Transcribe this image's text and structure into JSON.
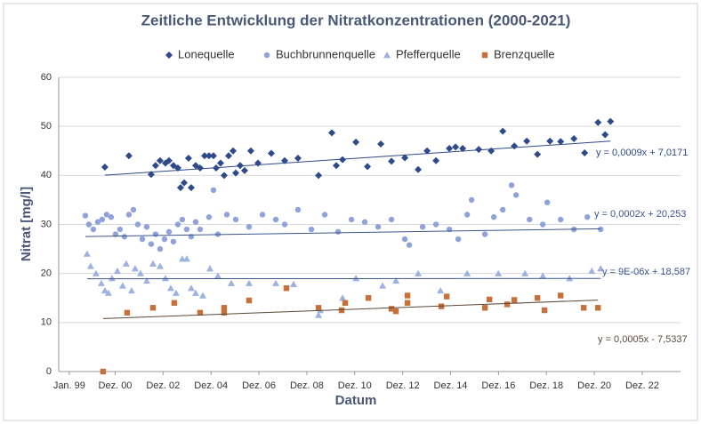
{
  "chart_data": {
    "type": "scatter",
    "title": "Zeitliche Entwicklung der Nitratkonzentrationen (2000-2021)",
    "x_label": "Datum",
    "y_label": "Nitrat [mg/l]",
    "xlim": [
      36000,
      45480
    ],
    "ylim": [
      0,
      60
    ],
    "yticks": [
      0,
      10,
      20,
      30,
      40,
      50,
      60
    ],
    "xticks": [
      {
        "value": 36161,
        "label": "Jan. 99"
      },
      {
        "value": 36861,
        "label": "Dez. 00"
      },
      {
        "value": 37591,
        "label": "Dez. 02"
      },
      {
        "value": 38322,
        "label": "Dez. 04"
      },
      {
        "value": 39052,
        "label": "Dez. 06"
      },
      {
        "value": 39783,
        "label": "Dez. 08"
      },
      {
        "value": 40513,
        "label": "Dez. 10"
      },
      {
        "value": 41244,
        "label": "Dez. 12"
      },
      {
        "value": 41974,
        "label": "Dez. 14"
      },
      {
        "value": 42705,
        "label": "Dez. 16"
      },
      {
        "value": 43435,
        "label": "Dez. 18"
      },
      {
        "value": 44166,
        "label": "Dez. 20"
      },
      {
        "value": 44896,
        "label": "Dez. 22"
      }
    ],
    "grid": true,
    "legend": "top",
    "series": [
      {
        "name": "Lonequelle",
        "color": "#2e4a8a",
        "marker": "diamond",
        "x": [
          36704,
          37070,
          37409,
          37477,
          37545,
          37627,
          37681,
          37749,
          37817,
          37857,
          37912,
          37979,
          38020,
          38088,
          38156,
          38224,
          38291,
          38359,
          38400,
          38468,
          38522,
          38590,
          38658,
          38699,
          38766,
          38834,
          38929,
          39038,
          39241,
          39445,
          39648,
          39961,
          40164,
          40232,
          40327,
          40531,
          40707,
          40911,
          41073,
          41277,
          41480,
          41616,
          41752,
          41955,
          42050,
          42159,
          42403,
          42593,
          42770,
          42946,
          43136,
          43299,
          43489,
          43652,
          43855,
          44018,
          44222,
          44330,
          44412
        ],
        "values": [
          41.7,
          44,
          40.2,
          42,
          43,
          42.5,
          43,
          42,
          41.5,
          37.5,
          38.5,
          43.5,
          37.5,
          42,
          41.5,
          44,
          44,
          44,
          41.5,
          42.5,
          40,
          44,
          45,
          40.5,
          42,
          41,
          45,
          42.5,
          44.5,
          43,
          43.5,
          40,
          48.7,
          42,
          43.2,
          46.8,
          41.8,
          46.4,
          42.9,
          43.6,
          41.2,
          45,
          43,
          45.5,
          45.8,
          45.5,
          45.3,
          45,
          49,
          46,
          47,
          44.3,
          47,
          46.9,
          47.5,
          44.6,
          50.8,
          48.3,
          51
        ]
      },
      {
        "name": "Buchbrunnenquelle",
        "color": "#8fa2d9",
        "marker": "circle",
        "x": [
          36405,
          36460,
          36527,
          36595,
          36663,
          36731,
          36799,
          36867,
          36934,
          37002,
          37070,
          37138,
          37206,
          37274,
          37342,
          37409,
          37477,
          37545,
          37613,
          37681,
          37749,
          37817,
          37884,
          37952,
          38020,
          38088,
          38156,
          38291,
          38359,
          38427,
          38563,
          38699,
          38902,
          39106,
          39309,
          39445,
          39648,
          39852,
          40056,
          40259,
          40463,
          40666,
          40870,
          41073,
          41277,
          41345,
          41548,
          41752,
          41955,
          42091,
          42227,
          42295,
          42498,
          42634,
          42770,
          42905,
          42973,
          43177,
          43380,
          43448,
          43652,
          43855,
          44059,
          44262
        ],
        "values": [
          31.8,
          30,
          29,
          30.5,
          31,
          32,
          31.5,
          28,
          29,
          27.5,
          32,
          33,
          30,
          27,
          29.5,
          26,
          28,
          25,
          27,
          28.5,
          26.5,
          30,
          31,
          29,
          27.5,
          30.5,
          29,
          31.5,
          37,
          28,
          32,
          31,
          29.5,
          32,
          31,
          30,
          33,
          29,
          32,
          28.5,
          31,
          30.5,
          29.5,
          31,
          27,
          25.8,
          29.5,
          30,
          29,
          27,
          32,
          35,
          28,
          31.5,
          33,
          38,
          36,
          31,
          30,
          34.5,
          31,
          29,
          31.5,
          29
        ]
      },
      {
        "name": "Pfefferquelle",
        "color": "#9db2e0",
        "marker": "triangle",
        "x": [
          36432,
          36487,
          36568,
          36650,
          36704,
          36758,
          36812,
          36894,
          36975,
          37029,
          37111,
          37165,
          37247,
          37342,
          37437,
          37545,
          37627,
          37708,
          37789,
          37884,
          37952,
          38020,
          38088,
          38197,
          38305,
          38427,
          38631,
          38902,
          39309,
          39581,
          39961,
          39988,
          40327,
          40531,
          40938,
          41141,
          41480,
          41820,
          42227,
          42702,
          43109,
          43380,
          43787,
          44127,
          44262
        ],
        "values": [
          24,
          21.5,
          20,
          18,
          16.5,
          16,
          19,
          20.5,
          17.5,
          22,
          16.5,
          21,
          20,
          18.5,
          22,
          21.5,
          19,
          17,
          16,
          23,
          23,
          17,
          16,
          15.5,
          21,
          19.5,
          18,
          18,
          18,
          17.8,
          11.5,
          12.5,
          15,
          19,
          17.5,
          18.5,
          20,
          16.5,
          20,
          20,
          20,
          19.5,
          19,
          20.5,
          21
        ]
      },
      {
        "name": "Brenzquelle",
        "color": "#c8703a",
        "marker": "square",
        "x": [
          36677,
          37043,
          37437,
          37762,
          38156,
          38522,
          38522,
          38902,
          39472,
          39961,
          40313,
          40368,
          40721,
          41073,
          41141,
          41318,
          41318,
          41833,
          41915,
          42498,
          42566,
          42837,
          42946,
          43299,
          43407,
          43652,
          44004,
          44222
        ],
        "values": [
          0,
          12,
          13,
          14,
          12,
          12,
          13,
          14.5,
          17,
          13,
          12.5,
          14,
          15,
          12.8,
          12.3,
          15.5,
          14,
          13.3,
          15.3,
          13,
          14.7,
          13.7,
          14.6,
          15,
          12.5,
          15.5,
          13,
          13
        ]
      }
    ],
    "trendlines": [
      {
        "label": "y = 0,0009x + 7,0171",
        "slope": 0.0009,
        "intercept": 7.0171,
        "color": "#2e4a8a"
      },
      {
        "label": "y = 0,0002x + 20,253",
        "slope": 0.0002,
        "intercept": 20.253,
        "color": "#3a558f"
      },
      {
        "label": "y = 9E-06x + 18,587",
        "slope": 9e-06,
        "intercept": 18.587,
        "color": "#3a558f"
      },
      {
        "label": "y = 0,0005x - 7,5337",
        "slope": 0.0005,
        "intercept": -7.5337,
        "color": "#5a4a3a"
      }
    ]
  }
}
